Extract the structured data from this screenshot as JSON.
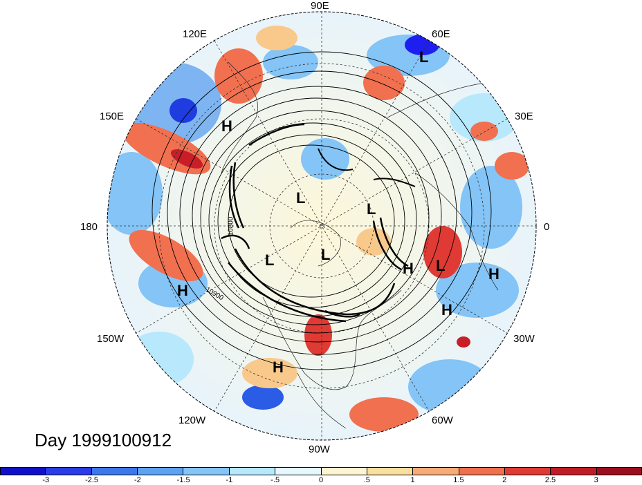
{
  "map": {
    "title": "Day 1999100912",
    "projection": "north polar stereographic",
    "lon_labels": {
      "e90": "90E",
      "e60": "60E",
      "e30": "30E",
      "zero": "0",
      "w30": "30W",
      "w60": "60W",
      "w90": "90W",
      "w120": "120W",
      "w150": "150W",
      "lon180": "180",
      "e150": "150E",
      "e120": "120E"
    },
    "contour_labels": [
      "10800",
      "10900"
    ],
    "pressure_centers": [
      {
        "label": "H",
        "region": "N Pacific west"
      },
      {
        "label": "H",
        "region": "central Pacific"
      },
      {
        "label": "H",
        "region": "Mexico/Gulf"
      },
      {
        "label": "H",
        "region": "Atlantic"
      },
      {
        "label": "H",
        "region": "Atlantic east"
      },
      {
        "label": "H",
        "region": "Europe west"
      },
      {
        "label": "L",
        "region": "Siberia"
      },
      {
        "label": "L",
        "region": "Canada Arctic"
      },
      {
        "label": "L",
        "region": "Arctic"
      },
      {
        "label": "L",
        "region": "Greenland"
      },
      {
        "label": "L",
        "region": "North Atlantic"
      },
      {
        "label": "L",
        "region": "Tibet"
      }
    ],
    "shading_colors": {
      "strong_neg": "#1e1ef0",
      "neg": "#6aa8f0",
      "weak_neg": "#bfe6fa",
      "neutral": "#fdf7d9",
      "weak_pos": "#f9c98c",
      "pos": "#f07050",
      "strong_pos": "#c81e28"
    }
  },
  "colorbar": {
    "ticks": [
      "-3",
      "-2.5",
      "-2",
      "-1.5",
      "-1",
      "-.5",
      "0",
      ".5",
      "1",
      "1.5",
      "2",
      "2.5",
      "3"
    ],
    "colors": [
      "#1010c8",
      "#2a3ce6",
      "#3c78ec",
      "#5ea2f2",
      "#84c4f6",
      "#b8e8fb",
      "#e6f8fd",
      "#fdf5d2",
      "#fbdfa0",
      "#f7ac78",
      "#f0704e",
      "#e03a34",
      "#c01c26",
      "#9a0e1e"
    ]
  }
}
